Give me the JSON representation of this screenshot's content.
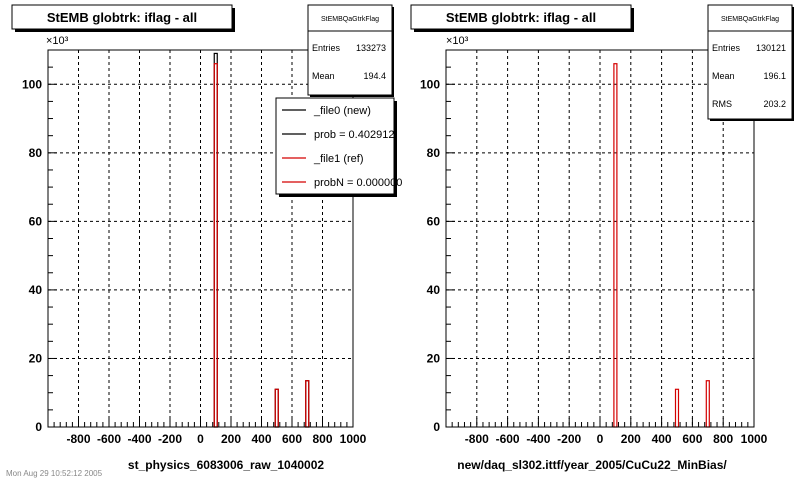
{
  "footer_note": "Mon Aug 29 10:52:12 2005",
  "chart_data": [
    {
      "type": "histogram",
      "title": "StEMB globtrk: iflag - all",
      "xlabel": "st_physics_6083006_raw_1040002",
      "y_multiplier": "×10³",
      "xlim": [
        -1000,
        1000
      ],
      "ylim": [
        0,
        110
      ],
      "x_ticks": [
        -800,
        -600,
        -400,
        -200,
        0,
        200,
        400,
        600,
        800,
        1000
      ],
      "y_ticks": [
        0,
        20,
        40,
        60,
        80,
        100
      ],
      "grid": true,
      "stats": {
        "name": "StEMBQaGtrkFlag",
        "rows": [
          {
            "label": "Entries",
            "value": "133273"
          },
          {
            "label": "Mean",
            "value": "194.4"
          }
        ]
      },
      "legend": {
        "placement": "top-right",
        "entries": [
          {
            "label": "_file0 (new)",
            "color": "#000000"
          },
          {
            "label": "prob = 0.402912",
            "color": "#000000"
          },
          {
            "label": "_file1 (ref)",
            "color": "#d40000"
          },
          {
            "label": "probN = 0.000000",
            "color": "#d40000"
          }
        ]
      },
      "series": [
        {
          "name": "_file0 (new)",
          "color": "#000000",
          "bars": [
            {
              "x": 100,
              "y": 109
            },
            {
              "x": 500,
              "y": 11
            },
            {
              "x": 700,
              "y": 13.5
            }
          ]
        },
        {
          "name": "_file1 (ref)",
          "color": "#d40000",
          "bars": [
            {
              "x": 100,
              "y": 106
            },
            {
              "x": 500,
              "y": 11
            },
            {
              "x": 700,
              "y": 13.5
            }
          ]
        }
      ]
    },
    {
      "type": "histogram",
      "title": "StEMB globtrk: iflag - all",
      "xlabel": "new/daq_sl302.ittf/year_2005/CuCu22_MinBias/",
      "y_multiplier": "×10³",
      "xlim": [
        -1000,
        1000
      ],
      "ylim": [
        0,
        110
      ],
      "x_ticks": [
        -800,
        -600,
        -400,
        -200,
        0,
        200,
        400,
        600,
        800,
        1000
      ],
      "y_ticks": [
        0,
        20,
        40,
        60,
        80,
        100
      ],
      "grid": true,
      "stats": {
        "name": "StEMBQaGtrkFlag",
        "rows": [
          {
            "label": "Entries",
            "value": "130121"
          },
          {
            "label": "Mean",
            "value": "196.1"
          },
          {
            "label": "RMS",
            "value": "203.2"
          }
        ]
      },
      "series": [
        {
          "color": "#d40000",
          "bars": [
            {
              "x": 100,
              "y": 106
            },
            {
              "x": 500,
              "y": 11
            },
            {
              "x": 700,
              "y": 13.5
            }
          ]
        }
      ]
    }
  ]
}
